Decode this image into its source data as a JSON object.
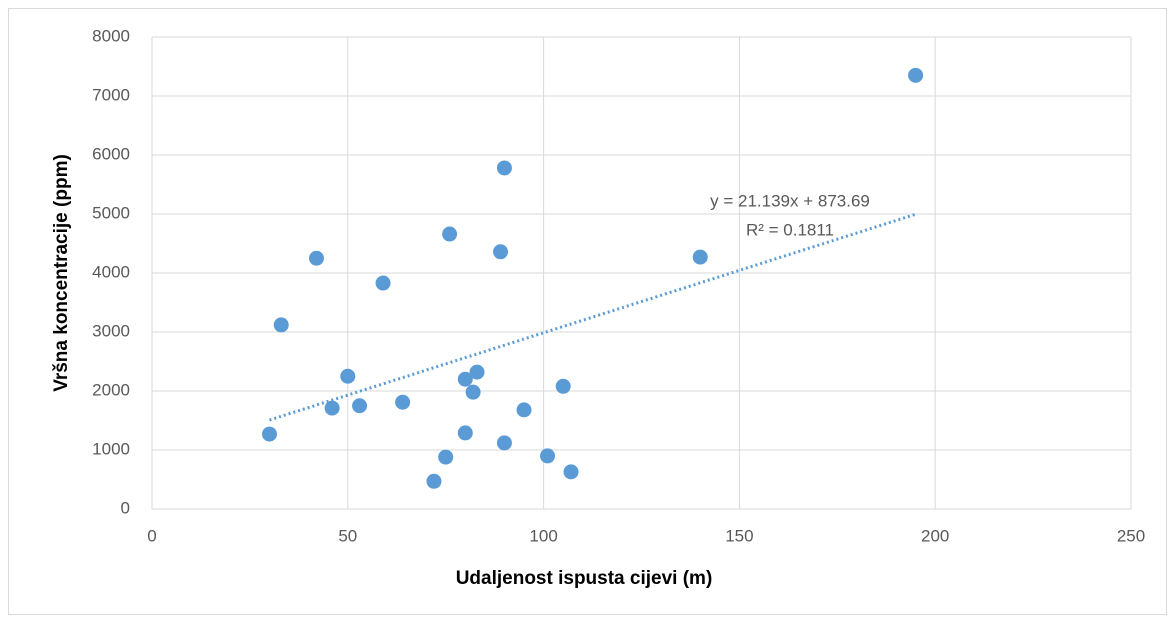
{
  "chart_data": {
    "type": "scatter",
    "x_label": "Udaljenost ispusta cijevi (m)",
    "y_label": "Vršna koncentracije (ppm)",
    "series": [
      {
        "color": "#5b9bd5",
        "x": [
          30,
          33,
          42,
          46,
          50,
          53,
          59,
          64,
          72,
          75,
          76,
          80,
          80,
          82,
          83,
          89,
          90,
          90,
          95,
          101,
          105,
          107,
          140,
          195
        ],
        "values": [
          1270,
          3120,
          4250,
          1710,
          2250,
          1750,
          3830,
          1810,
          470,
          880,
          4660,
          2200,
          1290,
          1980,
          2320,
          4360,
          1120,
          5780,
          1680,
          900,
          2080,
          630,
          4270,
          7350
        ]
      }
    ],
    "trendline": {
      "slope": 21.139,
      "intercept": 873.69,
      "label": "y = 21.139x + 873.69",
      "r2_label": "R² = 0.1811"
    },
    "xlim": [
      0,
      250
    ],
    "xticks": [
      0,
      50,
      100,
      150,
      200,
      250
    ],
    "ylim": [
      0,
      8000
    ],
    "yticks": [
      0,
      1000,
      2000,
      3000,
      4000,
      5000,
      6000,
      7000,
      8000
    ],
    "grid": true
  }
}
